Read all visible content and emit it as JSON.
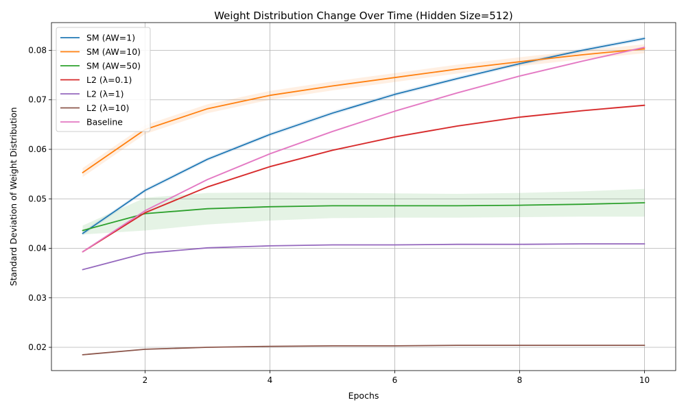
{
  "chart_data": {
    "type": "line",
    "title": "Weight Distribution Change Over Time (Hidden Size=512)",
    "xlabel": "Epochs",
    "ylabel": "Standard Deviation of Weight Distribution",
    "xlim": [
      0.5,
      10.5
    ],
    "ylim": [
      0.0153,
      0.0856
    ],
    "xticks": [
      2,
      4,
      6,
      8,
      10
    ],
    "yticks": [
      0.02,
      0.03,
      0.04,
      0.05,
      0.06,
      0.07,
      0.08
    ],
    "xtick_labels": [
      "2",
      "4",
      "6",
      "8",
      "10"
    ],
    "ytick_labels": [
      "0.02",
      "0.03",
      "0.04",
      "0.05",
      "0.06",
      "0.07",
      "0.08"
    ],
    "grid": true,
    "legend_position": "top-left",
    "x": [
      1,
      2,
      3,
      4,
      5,
      6,
      7,
      8,
      9,
      10
    ],
    "series": [
      {
        "name": "SM (AW=1)",
        "color": "#1f77b4",
        "values": [
          0.043,
          0.0517,
          0.058,
          0.063,
          0.0673,
          0.0711,
          0.0743,
          0.0773,
          0.08,
          0.0824
        ],
        "band": 0.0004
      },
      {
        "name": "SM (AW=10)",
        "color": "#ff7f0e",
        "values": [
          0.0553,
          0.064,
          0.0682,
          0.0709,
          0.0728,
          0.0745,
          0.0762,
          0.0777,
          0.0791,
          0.0803
        ],
        "band": 0.0009
      },
      {
        "name": "SM (AW=50)",
        "color": "#2ca02c",
        "values": [
          0.0436,
          0.047,
          0.048,
          0.0484,
          0.0486,
          0.0486,
          0.0486,
          0.0487,
          0.0489,
          0.0492
        ],
        "band_low": [
          0.0428,
          0.0436,
          0.0448,
          0.0456,
          0.0461,
          0.0462,
          0.0462,
          0.0463,
          0.0464,
          0.0464
        ],
        "band_high": [
          0.0446,
          0.0502,
          0.0512,
          0.0513,
          0.0512,
          0.0511,
          0.051,
          0.0512,
          0.0515,
          0.052
        ]
      },
      {
        "name": "L2 (λ=0.1)",
        "color": "#d62728",
        "values": [
          0.0393,
          0.0472,
          0.0524,
          0.0565,
          0.0598,
          0.0625,
          0.0647,
          0.0665,
          0.0678,
          0.0689
        ],
        "band": 0.0002
      },
      {
        "name": "L2 (λ=1)",
        "color": "#9467bd",
        "values": [
          0.0357,
          0.039,
          0.0401,
          0.0405,
          0.0407,
          0.0407,
          0.0408,
          0.0408,
          0.0409,
          0.0409
        ],
        "band": 0.0001
      },
      {
        "name": "L2 (λ=10)",
        "color": "#8c564b",
        "values": [
          0.0185,
          0.0196,
          0.02,
          0.0202,
          0.0203,
          0.0203,
          0.0204,
          0.0204,
          0.0204,
          0.0204
        ],
        "band": 0.0001
      },
      {
        "name": "Baseline",
        "color": "#e377c2",
        "values": [
          0.0393,
          0.0476,
          0.0539,
          0.0591,
          0.0636,
          0.0677,
          0.0714,
          0.0748,
          0.0778,
          0.0806
        ],
        "band": 0.0002
      }
    ]
  }
}
